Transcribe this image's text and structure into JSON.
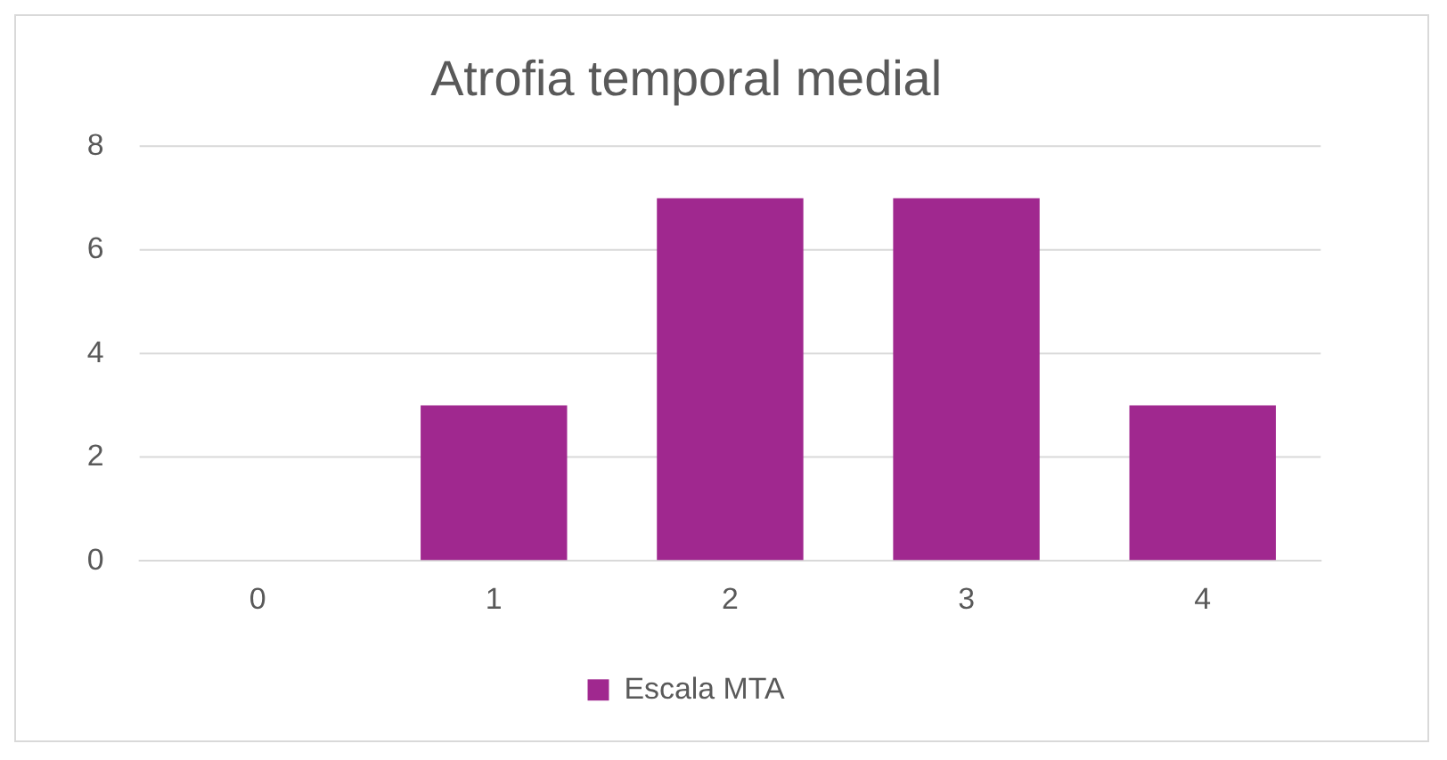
{
  "chart_data": {
    "type": "bar",
    "title": "Atrofia temporal medial",
    "categories": [
      "0",
      "1",
      "2",
      "3",
      "4"
    ],
    "series": [
      {
        "name": "Escala MTA",
        "color": "#a0288f",
        "values": [
          0,
          3,
          7,
          7,
          3
        ]
      }
    ],
    "ylim": [
      0,
      8
    ],
    "yticks": [
      0,
      2,
      4,
      6,
      8
    ],
    "grid": "y",
    "legend": "bottom"
  }
}
